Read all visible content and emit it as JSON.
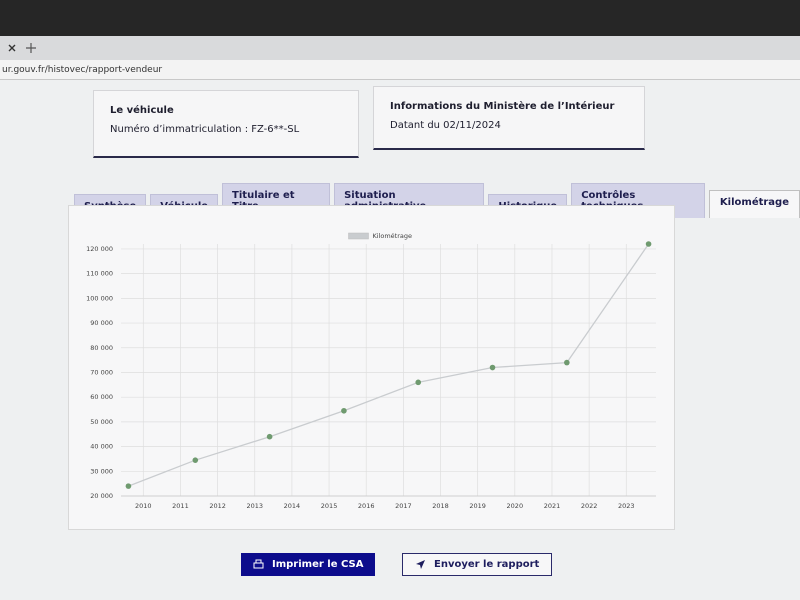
{
  "browser": {
    "url": "ur.gouv.fr/histovec/rapport-vendeur"
  },
  "cards": [
    {
      "title": "Le véhicule",
      "text": "Numéro d’immatriculation : FZ-6**-SL"
    },
    {
      "title": "Informations du Ministère de l’Intérieur",
      "text": "Datant du 02/11/2024"
    }
  ],
  "tabs": [
    {
      "label": "Synthèse",
      "active": false
    },
    {
      "label": "Véhicule",
      "active": false
    },
    {
      "label": "Titulaire et Titre",
      "active": false
    },
    {
      "label": "Situation administrative",
      "active": false
    },
    {
      "label": "Historique",
      "active": false
    },
    {
      "label": "Contrôles techniques",
      "active": false
    },
    {
      "label": "Kilométrage",
      "active": true
    }
  ],
  "chart_data": {
    "type": "line",
    "x": [
      2009.6,
      2011.4,
      2013.4,
      2015.4,
      2017.4,
      2019.4,
      2021.4,
      2023.6
    ],
    "series": [
      {
        "name": "Kilométrage",
        "color": "#c9cccf",
        "marker_color": "#6f9a6f",
        "values": [
          24000,
          34500,
          44000,
          54500,
          66000,
          72000,
          74000,
          122000
        ]
      }
    ],
    "xlim": [
      2009.4,
      2023.8
    ],
    "xticks": [
      2010,
      2011,
      2012,
      2013,
      2014,
      2015,
      2016,
      2017,
      2018,
      2019,
      2020,
      2021,
      2022,
      2023
    ],
    "ylim": [
      20000,
      122000
    ],
    "yticks": [
      {
        "value": 20000,
        "label": "20 000"
      },
      {
        "value": 30000,
        "label": "30 000"
      },
      {
        "value": 40000,
        "label": "40 000"
      },
      {
        "value": 50000,
        "label": "50 000"
      },
      {
        "value": 60000,
        "label": "60 000"
      },
      {
        "value": 70000,
        "label": "70 000"
      },
      {
        "value": 80000,
        "label": "80 000"
      },
      {
        "value": 90000,
        "label": "90 000"
      },
      {
        "value": 100000,
        "label": "100 000"
      },
      {
        "value": 110000,
        "label": "110 000"
      },
      {
        "value": 120000,
        "label": "120 000"
      }
    ],
    "grid": true,
    "legend": "top"
  },
  "buttons": [
    {
      "label": "Imprimer le CSA"
    },
    {
      "label": "Envoyer le rapport"
    }
  ]
}
